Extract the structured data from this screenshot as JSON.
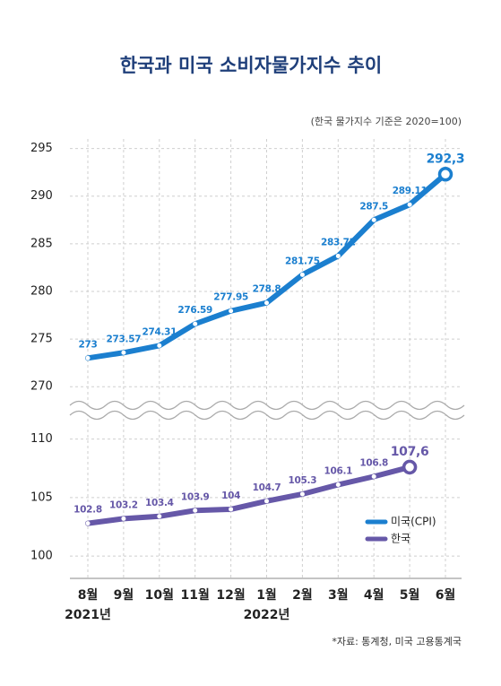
{
  "chart_data": {
    "type": "line",
    "title": "한국과 미국 소비자물가지수 추이",
    "subtitle": "(한국 물가지수 기준은 2020=100)",
    "source": "*자료: 통계청, 미국 고용통계국",
    "categories": [
      "8월",
      "9월",
      "10월",
      "11월",
      "12월",
      "1월",
      "2월",
      "3월",
      "4월",
      "5월",
      "6월"
    ],
    "year_labels": [
      "2021년",
      null,
      null,
      null,
      null,
      "2022년",
      null,
      null,
      null,
      null,
      null
    ],
    "series": [
      {
        "name": "미국(CPI)",
        "color": "#1b7fcf",
        "values": [
          273,
          273.57,
          274.31,
          276.59,
          277.95,
          278.8,
          281.75,
          283.72,
          287.5,
          289.11,
          292.3
        ],
        "value_labels": [
          "273",
          "273.57",
          "274.31",
          "276.59",
          "277.95",
          "278.8",
          "281.75",
          "283.72",
          "287.5",
          "289.11",
          "292,3"
        ]
      },
      {
        "name": "한국",
        "color": "#6658a8",
        "axis": "y2",
        "values": [
          102.8,
          103.2,
          103.4,
          103.9,
          104,
          104.7,
          105.3,
          106.1,
          106.8,
          107.6,
          null
        ],
        "value_labels": [
          "102.8",
          "103.2",
          "103.4",
          "103.9",
          "104",
          "104.7",
          "105.3",
          "106.1",
          "106.8",
          "107,6",
          null
        ]
      }
    ],
    "ylim": [
      268.7,
      296
    ],
    "yticks": [
      270,
      275,
      280,
      285,
      290,
      295
    ],
    "y2lim": [
      98.1,
      111.5
    ],
    "y2ticks": [
      100,
      105,
      110
    ],
    "grid": true,
    "legend": "lower right"
  }
}
